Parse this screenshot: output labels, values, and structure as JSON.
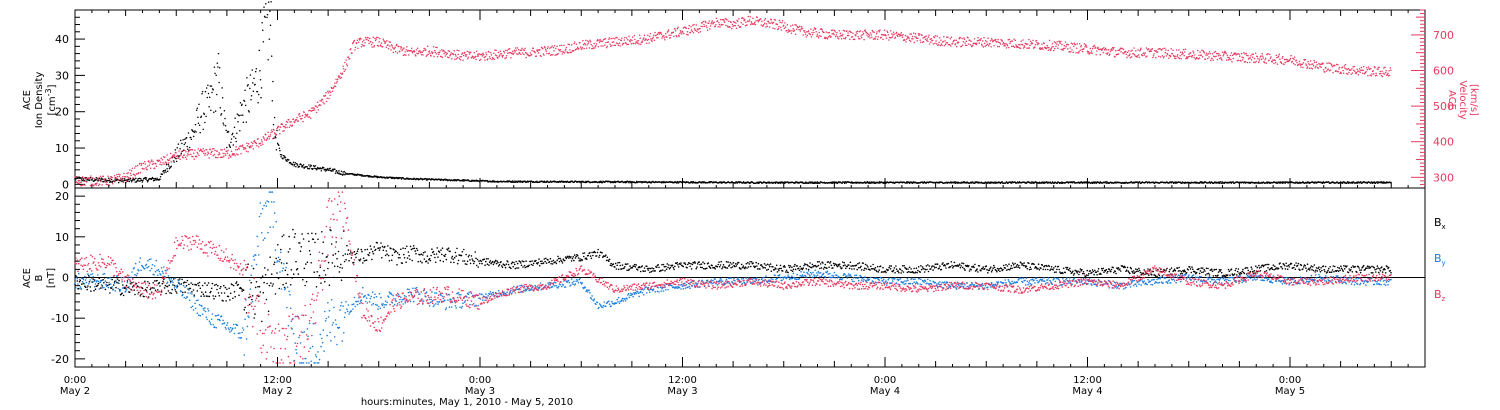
{
  "chart_data": [
    {
      "type": "scatter",
      "panel": "top",
      "x_unit": "hours since May 2 00:00",
      "xlim": [
        0,
        80
      ],
      "left_axis": {
        "label_lines": [
          "ACE",
          "Ion Density",
          "[cm^-3]"
        ],
        "label_line1": "ACE",
        "label_line2": "Ion Density",
        "label_line3_prefix": "[cm",
        "label_line3_sup": "-3",
        "label_line3_suffix": "]",
        "ylim": [
          -1,
          48
        ],
        "ticks": [
          0,
          10,
          20,
          30,
          40
        ],
        "tick_labels": [
          "0",
          "10",
          "20",
          "30",
          "40"
        ],
        "color": "#000000"
      },
      "right_axis": {
        "label_lines": [
          "ACE",
          "Velocity",
          "[km/s]"
        ],
        "ylim": [
          270,
          770
        ],
        "ticks": [
          300,
          400,
          500,
          600,
          700
        ],
        "tick_labels": [
          "300",
          "400",
          "500",
          "600",
          "700"
        ],
        "color": "#e8385f"
      },
      "series": [
        {
          "axis": "left",
          "color": "#000000",
          "points": [
            [
              0,
              1.5
            ],
            [
              3,
              1
            ],
            [
              5,
              1.5
            ],
            [
              5.5,
              5
            ],
            [
              6,
              8
            ],
            [
              7,
              14
            ],
            [
              7.5,
              20
            ],
            [
              8,
              22
            ],
            [
              8.3,
              27
            ],
            [
              8.5,
              29
            ],
            [
              9,
              12
            ],
            [
              9.5,
              15
            ],
            [
              10,
              22
            ],
            [
              10.5,
              25
            ],
            [
              11,
              32
            ],
            [
              11.3,
              42
            ],
            [
              11.6,
              44
            ],
            [
              11.8,
              15
            ],
            [
              12.2,
              8
            ],
            [
              13,
              5.5
            ],
            [
              15,
              4
            ],
            [
              16,
              3
            ],
            [
              18,
              2
            ],
            [
              20,
              1.5
            ],
            [
              25,
              0.8
            ],
            [
              40,
              0.5
            ],
            [
              60,
              0.5
            ],
            [
              75,
              0.5
            ]
          ]
        },
        {
          "axis": "right",
          "color": "#e8385f",
          "points": [
            [
              0,
              290
            ],
            [
              2,
              290
            ],
            [
              3,
              300
            ],
            [
              4,
              330
            ],
            [
              5,
              340
            ],
            [
              6,
              360
            ],
            [
              7,
              365
            ],
            [
              8,
              368
            ],
            [
              9,
              365
            ],
            [
              10,
              380
            ],
            [
              11,
              400
            ],
            [
              12,
              430
            ],
            [
              13,
              460
            ],
            [
              14,
              480
            ],
            [
              15,
              530
            ],
            [
              16,
              610
            ],
            [
              16.5,
              670
            ],
            [
              17,
              680
            ],
            [
              18,
              680
            ],
            [
              19,
              660
            ],
            [
              20,
              650
            ],
            [
              21,
              655
            ],
            [
              22,
              650
            ],
            [
              23,
              640
            ],
            [
              24,
              640
            ],
            [
              25,
              645
            ],
            [
              26,
              650
            ],
            [
              27,
              650
            ],
            [
              28,
              655
            ],
            [
              29,
              660
            ],
            [
              30,
              670
            ],
            [
              32,
              680
            ],
            [
              34,
              690
            ],
            [
              36,
              710
            ],
            [
              37,
              720
            ],
            [
              38,
              735
            ],
            [
              39,
              730
            ],
            [
              40,
              740
            ],
            [
              42,
              725
            ],
            [
              43,
              710
            ],
            [
              45,
              700
            ],
            [
              48,
              700
            ],
            [
              50,
              690
            ],
            [
              52,
              680
            ],
            [
              54,
              680
            ],
            [
              56,
              675
            ],
            [
              58,
              670
            ],
            [
              60,
              660
            ],
            [
              62,
              650
            ],
            [
              64,
              650
            ],
            [
              66,
              645
            ],
            [
              68,
              640
            ],
            [
              70,
              635
            ],
            [
              72,
              630
            ],
            [
              74,
              610
            ],
            [
              76,
              600
            ],
            [
              78,
              595
            ]
          ]
        }
      ]
    },
    {
      "type": "scatter",
      "panel": "bottom",
      "x_unit": "hours since May 2 00:00",
      "xlim": [
        0,
        80
      ],
      "left_axis": {
        "label_lines": [
          "ACE",
          "B",
          "[nT]"
        ],
        "ylim": [
          -22,
          22
        ],
        "ticks": [
          -20,
          -10,
          0,
          10,
          20
        ],
        "tick_labels": [
          "-20",
          "-10",
          "0",
          "10",
          "20"
        ],
        "color": "#000000"
      },
      "legend": [
        {
          "base": "B",
          "sub": "x",
          "color": "#000000"
        },
        {
          "base": "B",
          "sub": "y",
          "color": "#1a7ee0"
        },
        {
          "base": "B",
          "sub": "z",
          "color": "#e8385f"
        }
      ],
      "series": [
        {
          "name": "Bx",
          "color": "#000000",
          "points": [
            [
              0,
              -1
            ],
            [
              2,
              -2
            ],
            [
              4,
              -3
            ],
            [
              6,
              -2
            ],
            [
              8,
              -3
            ],
            [
              9,
              -4
            ],
            [
              10,
              -2
            ],
            [
              11,
              -5
            ],
            [
              12,
              2
            ],
            [
              13,
              6
            ],
            [
              14,
              4
            ],
            [
              15,
              5
            ],
            [
              16,
              6
            ],
            [
              17,
              5
            ],
            [
              18,
              7
            ],
            [
              19,
              5
            ],
            [
              20,
              6
            ],
            [
              21,
              5
            ],
            [
              22,
              6
            ],
            [
              24,
              4
            ],
            [
              26,
              3
            ],
            [
              28,
              4
            ],
            [
              30,
              5
            ],
            [
              31,
              6
            ],
            [
              32,
              3
            ],
            [
              34,
              2
            ],
            [
              36,
              3
            ],
            [
              38,
              3
            ],
            [
              40,
              3
            ],
            [
              42,
              2
            ],
            [
              44,
              3
            ],
            [
              46,
              3
            ],
            [
              48,
              2
            ],
            [
              50,
              2
            ],
            [
              52,
              3
            ],
            [
              54,
              2
            ],
            [
              56,
              3
            ],
            [
              58,
              2
            ],
            [
              60,
              1
            ],
            [
              62,
              2
            ],
            [
              64,
              1
            ],
            [
              66,
              2
            ],
            [
              68,
              1
            ],
            [
              70,
              2
            ],
            [
              72,
              3
            ],
            [
              74,
              2
            ],
            [
              76,
              2
            ],
            [
              78,
              2
            ]
          ]
        },
        {
          "name": "By",
          "color": "#1a7ee0",
          "points": [
            [
              0,
              -1
            ],
            [
              2,
              -1
            ],
            [
              3,
              -2
            ],
            [
              4,
              4
            ],
            [
              5,
              2
            ],
            [
              6,
              -2
            ],
            [
              7,
              -6
            ],
            [
              8,
              -10
            ],
            [
              9,
              -12
            ],
            [
              10,
              -14
            ],
            [
              11,
              12
            ],
            [
              11.5,
              18
            ],
            [
              12,
              10
            ],
            [
              13,
              -16
            ],
            [
              14,
              -18
            ],
            [
              15,
              -12
            ],
            [
              16,
              -8
            ],
            [
              17,
              -4
            ],
            [
              18,
              -6
            ],
            [
              20,
              -4
            ],
            [
              22,
              -6
            ],
            [
              24,
              -5
            ],
            [
              26,
              -3
            ],
            [
              28,
              -2
            ],
            [
              30,
              -1
            ],
            [
              31,
              -7
            ],
            [
              32,
              -6
            ],
            [
              34,
              -3
            ],
            [
              36,
              -2
            ],
            [
              38,
              -1
            ],
            [
              40,
              -1
            ],
            [
              42,
              0
            ],
            [
              44,
              1
            ],
            [
              46,
              0
            ],
            [
              48,
              -1
            ],
            [
              50,
              -1
            ],
            [
              52,
              -2
            ],
            [
              54,
              -2
            ],
            [
              56,
              -1
            ],
            [
              58,
              -1
            ],
            [
              60,
              -1
            ],
            [
              62,
              -2
            ],
            [
              64,
              -1
            ],
            [
              66,
              0
            ],
            [
              68,
              -1
            ],
            [
              70,
              0
            ],
            [
              72,
              -1
            ],
            [
              74,
              0
            ],
            [
              76,
              -1
            ],
            [
              78,
              -1
            ]
          ]
        },
        {
          "name": "Bz",
          "color": "#e8385f",
          "points": [
            [
              0,
              3
            ],
            [
              2,
              4
            ],
            [
              3,
              -1
            ],
            [
              4,
              -3
            ],
            [
              5,
              -4
            ],
            [
              6,
              8
            ],
            [
              7,
              9
            ],
            [
              8,
              7
            ],
            [
              9,
              5
            ],
            [
              10,
              1
            ],
            [
              11,
              -12
            ],
            [
              12,
              -17
            ],
            [
              13,
              -15
            ],
            [
              14,
              -13
            ],
            [
              15,
              12
            ],
            [
              16,
              17
            ],
            [
              17,
              -8
            ],
            [
              18,
              -12
            ],
            [
              19,
              -6
            ],
            [
              20,
              -5
            ],
            [
              22,
              -4
            ],
            [
              24,
              -6
            ],
            [
              26,
              -3
            ],
            [
              28,
              -2
            ],
            [
              30,
              2
            ],
            [
              32,
              -3
            ],
            [
              34,
              -2
            ],
            [
              36,
              -1
            ],
            [
              38,
              -2
            ],
            [
              40,
              -1
            ],
            [
              42,
              -2
            ],
            [
              44,
              -1
            ],
            [
              46,
              -2
            ],
            [
              48,
              -2
            ],
            [
              50,
              -3
            ],
            [
              52,
              -2
            ],
            [
              54,
              -2
            ],
            [
              56,
              -3
            ],
            [
              58,
              -2
            ],
            [
              60,
              -1
            ],
            [
              62,
              -2
            ],
            [
              64,
              2
            ],
            [
              66,
              -1
            ],
            [
              68,
              -2
            ],
            [
              70,
              1
            ],
            [
              72,
              -1
            ],
            [
              74,
              -1
            ],
            [
              76,
              0
            ],
            [
              78,
              0
            ]
          ]
        }
      ]
    }
  ],
  "x_axis": {
    "ticks": [
      {
        "hour": 0,
        "time": "0:00",
        "date": "May 2"
      },
      {
        "hour": 12,
        "time": "12:00",
        "date": "May 2"
      },
      {
        "hour": 24,
        "time": "0:00",
        "date": "May 3"
      },
      {
        "hour": 36,
        "time": "12:00",
        "date": "May 3"
      },
      {
        "hour": 48,
        "time": "0:00",
        "date": "May 4"
      },
      {
        "hour": 60,
        "time": "12:00",
        "date": "May 4"
      },
      {
        "hour": 72,
        "time": "0:00",
        "date": "May 5"
      }
    ],
    "title": "hours:minutes, May  1, 2010 - May  5, 2010"
  }
}
